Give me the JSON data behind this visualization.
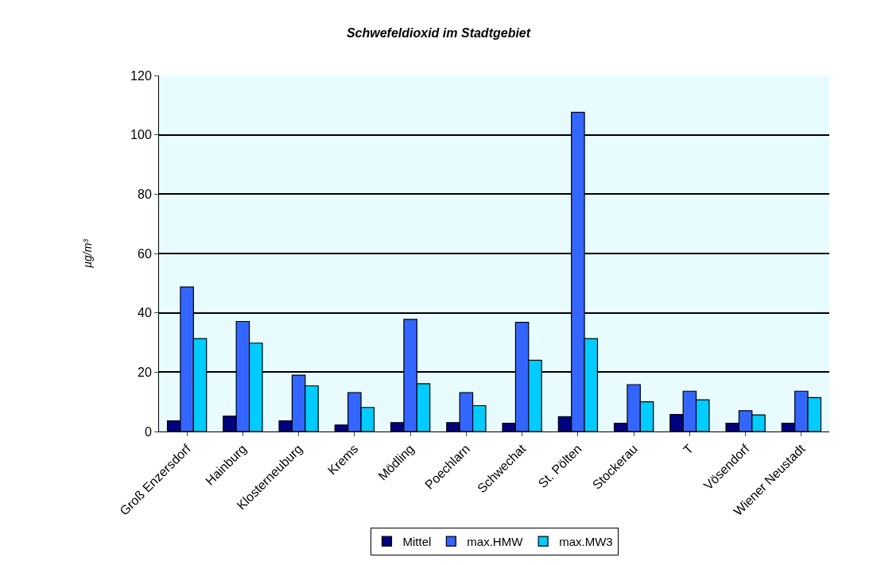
{
  "chart_data": {
    "type": "bar",
    "title": "Schwefeldioxid im Stadtgebiet",
    "ylabel": "µg/m³",
    "categories": [
      "Groß Enzersdorf",
      "Hainburg",
      "Klosterneuburg",
      "Krems",
      "Mödling",
      "Poechlarn",
      "Schwechat",
      "St. Pölten",
      "Stockerau",
      "T",
      "Vösendorf",
      "Wiener Neustadt"
    ],
    "series": [
      {
        "name": "Mittel",
        "color": "#000080",
        "values": [
          3.6,
          5.2,
          3.6,
          2.2,
          3.0,
          3.0,
          2.8,
          5.0,
          2.8,
          5.7,
          2.8,
          2.8
        ]
      },
      {
        "name": "max.HMW",
        "color": "#3366ff",
        "values": [
          48.7,
          37.1,
          19.0,
          13.1,
          37.8,
          13.1,
          36.8,
          107.6,
          15.8,
          13.6,
          7.0,
          13.6
        ]
      },
      {
        "name": "max.MW3",
        "color": "#00ccff",
        "values": [
          31.3,
          29.8,
          15.4,
          8.1,
          16.1,
          8.7,
          24.0,
          31.3,
          10.0,
          10.7,
          5.6,
          11.4
        ]
      }
    ],
    "ylim": [
      0,
      120
    ],
    "yticks": [
      0,
      20,
      40,
      60,
      80,
      100,
      120
    ],
    "grid": "y",
    "legend": "bottom"
  }
}
